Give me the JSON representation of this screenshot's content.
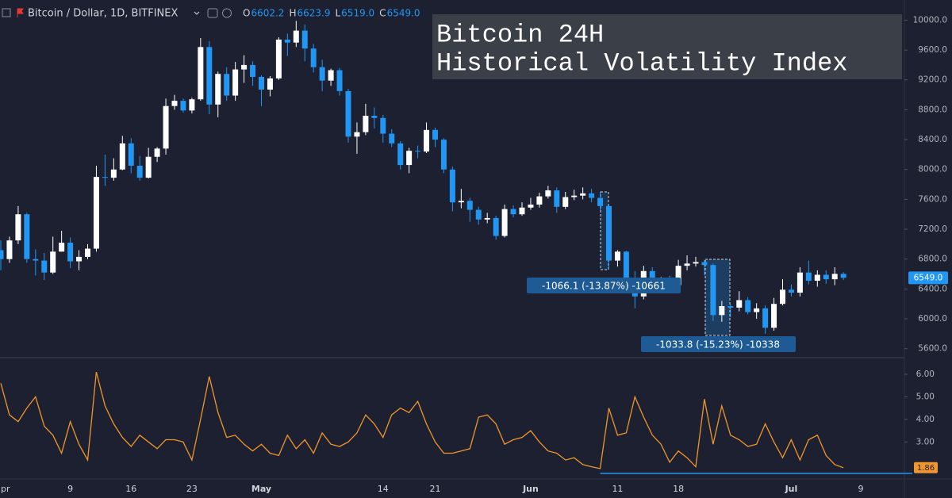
{
  "chart_data": [
    {
      "type": "candlestick",
      "symbol": "Bitcoin / Dollar, 1D, BITFINEX",
      "legend": [
        {
          "key": "O",
          "value": "6602.2"
        },
        {
          "key": "H",
          "value": "6623.9"
        },
        {
          "key": "L",
          "value": "6519.0"
        },
        {
          "key": "C",
          "value": "6549.0"
        }
      ],
      "up_color": "#ffffff",
      "down_color": "#2196f3",
      "open": [
        6920,
        6800,
        7050,
        7400,
        6800,
        6780,
        6620,
        6900,
        7020,
        6770,
        6830,
        6940,
        7900,
        7890,
        8000,
        8350,
        8050,
        7890,
        8170,
        8280,
        8850,
        8920,
        8790,
        8940,
        9640,
        8870,
        9280,
        8990,
        9340,
        9400,
        9240,
        9070,
        9220,
        9740,
        9700,
        9860,
        9620,
        9370,
        9190,
        9330,
        9050,
        8440,
        8500,
        8720,
        8690,
        8480,
        8350,
        8060,
        8250,
        8240,
        8530,
        8400,
        8000,
        7560,
        7580,
        7460,
        7330,
        7350,
        7110,
        7470,
        7400,
        7490,
        7530,
        7640,
        7720,
        7500,
        7630,
        7650,
        7680,
        7620,
        7510,
        6780,
        6900,
        6550,
        6300,
        6640,
        6400,
        6500,
        6450,
        6710,
        6740,
        6760,
        6720,
        6050,
        6170,
        6150,
        6250,
        6090,
        6140,
        5880,
        6200,
        6390,
        6350,
        6620,
        6510,
        6590,
        6530,
        6602.2
      ],
      "high": [
        7050,
        7100,
        7510,
        7420,
        6930,
        6880,
        7100,
        7180,
        7090,
        6920,
        7000,
        8050,
        8200,
        8150,
        8450,
        8420,
        8180,
        8290,
        8300,
        8950,
        9000,
        8950,
        8960,
        9760,
        9720,
        9310,
        9370,
        9440,
        9530,
        9450,
        9260,
        9250,
        9770,
        9820,
        9990,
        9940,
        9680,
        9470,
        9350,
        9360,
        9080,
        8630,
        8880,
        8830,
        8730,
        8540,
        8380,
        8290,
        8320,
        8630,
        8560,
        8420,
        8040,
        7740,
        7620,
        7500,
        7420,
        7380,
        7530,
        7520,
        7560,
        7620,
        7690,
        7780,
        7760,
        7700,
        7730,
        7760,
        7740,
        7700,
        7540,
        6920,
        6910,
        6640,
        6710,
        6690,
        6560,
        6580,
        6790,
        6850,
        6830,
        6790,
        6740,
        6240,
        6200,
        6370,
        6290,
        6210,
        6180,
        6280,
        6530,
        6460,
        6690,
        6780,
        6650,
        6650,
        6690,
        6623.9
      ],
      "low": [
        6650,
        6750,
        7000,
        6750,
        6580,
        6520,
        6600,
        6900,
        6680,
        6650,
        6800,
        6900,
        7780,
        7850,
        7990,
        7950,
        7850,
        7880,
        8100,
        8200,
        8800,
        8760,
        8750,
        8920,
        8740,
        8700,
        8920,
        8920,
        9160,
        9120,
        8850,
        8980,
        9200,
        9520,
        9640,
        9450,
        9300,
        9050,
        9120,
        8990,
        8360,
        8210,
        8460,
        8550,
        8360,
        8300,
        8000,
        7950,
        8150,
        8220,
        8300,
        7950,
        7440,
        7480,
        7300,
        7260,
        7280,
        7060,
        7090,
        7360,
        7380,
        7460,
        7490,
        7610,
        7420,
        7470,
        7590,
        7600,
        7560,
        7440,
        6660,
        6700,
        6450,
        6140,
        6260,
        6360,
        6380,
        6400,
        6420,
        6650,
        6700,
        6580,
        5970,
        5960,
        6020,
        6100,
        6060,
        6000,
        5800,
        5840,
        6180,
        6300,
        6300,
        6460,
        6430,
        6470,
        6450,
        6519
      ],
      "close": [
        6800,
        7050,
        7400,
        6800,
        6780,
        6620,
        6900,
        7020,
        6770,
        6830,
        6940,
        7900,
        7890,
        8000,
        8350,
        8050,
        7890,
        8170,
        8280,
        8850,
        8920,
        8790,
        8940,
        9640,
        8870,
        9280,
        8990,
        9340,
        9400,
        9240,
        9070,
        9220,
        9740,
        9700,
        9860,
        9620,
        9370,
        9190,
        9330,
        9050,
        8440,
        8500,
        8720,
        8690,
        8480,
        8350,
        8060,
        8250,
        8240,
        8530,
        8400,
        8000,
        7560,
        7580,
        7460,
        7330,
        7350,
        7110,
        7470,
        7400,
        7490,
        7530,
        7640,
        7720,
        7500,
        7630,
        7650,
        7680,
        7620,
        7510,
        6780,
        6900,
        6550,
        6300,
        6640,
        6400,
        6500,
        6450,
        6710,
        6740,
        6760,
        6720,
        6050,
        6170,
        6150,
        6250,
        6090,
        6140,
        5880,
        6200,
        6390,
        6350,
        6620,
        6510,
        6590,
        6530,
        6602.2,
        6549
      ],
      "last_label": "6549.0",
      "ylim": [
        5480,
        10270
      ],
      "yticks": [
        {
          "value": 5600,
          "label": "5600.0"
        },
        {
          "value": 6000,
          "label": "6000.0"
        },
        {
          "value": 6400,
          "label": "6400.0"
        },
        {
          "value": 6800,
          "label": "6800.0"
        },
        {
          "value": 7200,
          "label": "7200.0"
        },
        {
          "value": 7600,
          "label": "7600.0"
        },
        {
          "value": 8000,
          "label": "8000.0"
        },
        {
          "value": 8400,
          "label": "8400.0"
        },
        {
          "value": 8800,
          "label": "8800.0"
        },
        {
          "value": 9200,
          "label": "9200.0"
        },
        {
          "value": 9600,
          "label": "9600.0"
        },
        {
          "value": 10000,
          "label": "10000.0"
        }
      ],
      "annotations": [
        "-1066.1  (-13.87%)  -10661",
        "-1033.8  (-15.23%)  -10338"
      ],
      "xticks": [
        {
          "value": 0,
          "label": "pr"
        },
        {
          "value": 8,
          "label": "9"
        },
        {
          "value": 15,
          "label": "16"
        },
        {
          "value": 22,
          "label": "23"
        },
        {
          "value": 30,
          "label": "May"
        },
        {
          "value": 44,
          "label": "14"
        },
        {
          "value": 50,
          "label": "21"
        },
        {
          "value": 61,
          "label": "Jun"
        },
        {
          "value": 71,
          "label": "11"
        },
        {
          "value": 78,
          "label": "18"
        },
        {
          "value": 91,
          "label": "Jul"
        },
        {
          "value": 99,
          "label": "9"
        }
      ]
    },
    {
      "type": "line",
      "title": [
        "Bitcoin 24H",
        "Historical Volatility Index"
      ],
      "color": "#f0962a",
      "values": [
        5.6,
        4.2,
        3.9,
        4.5,
        5.0,
        3.7,
        3.3,
        2.5,
        3.9,
        2.9,
        2.2,
        6.1,
        4.6,
        3.8,
        3.2,
        2.8,
        3.3,
        3.0,
        2.7,
        3.1,
        3.1,
        3.0,
        2.2,
        4.0,
        5.9,
        4.3,
        3.2,
        3.3,
        2.9,
        2.6,
        2.9,
        2.5,
        2.4,
        3.3,
        2.7,
        3.1,
        2.5,
        3.4,
        2.9,
        2.8,
        3.0,
        3.4,
        4.2,
        3.8,
        3.2,
        4.2,
        4.5,
        4.3,
        4.8,
        3.8,
        3.0,
        2.5,
        2.5,
        2.6,
        2.7,
        4.1,
        4.2,
        3.8,
        2.9,
        3.1,
        3.2,
        3.5,
        3.0,
        2.6,
        2.5,
        2.2,
        2.3,
        2.0,
        1.9,
        1.82,
        4.5,
        3.3,
        3.4,
        5.0,
        4.1,
        3.3,
        2.9,
        2.1,
        2.6,
        2.3,
        1.9,
        4.9,
        2.9,
        4.6,
        3.3,
        3.1,
        2.8,
        2.9,
        3.8,
        3.0,
        2.3,
        3.1,
        2.2,
        3.1,
        3.3,
        2.4,
        2.0,
        1.86
      ],
      "ylim": [
        1.5,
        6.7
      ],
      "yticks": [
        {
          "value": 3,
          "label": "3.00"
        },
        {
          "value": 4,
          "label": "4.00"
        },
        {
          "value": 5,
          "label": "5.00"
        },
        {
          "value": 6,
          "label": "6.00"
        }
      ]
    }
  ]
}
